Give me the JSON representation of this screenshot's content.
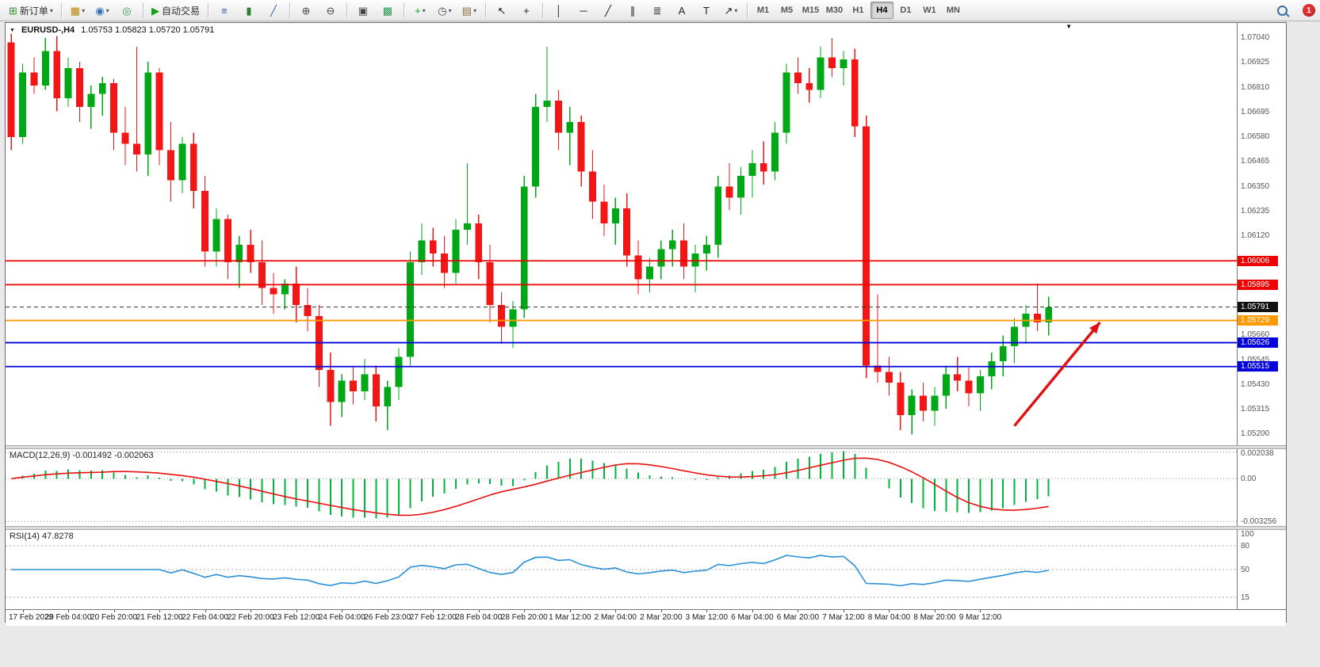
{
  "toolbar": {
    "badge_count": "1",
    "caret_glyph": "▾",
    "timeframes": [
      "M1",
      "M5",
      "M15",
      "M30",
      "H1",
      "H4",
      "D1",
      "W1",
      "MN"
    ],
    "active_timeframe": "H4",
    "items": [
      {
        "name": "new-order-button",
        "label": "新订单",
        "glyph": "⊞",
        "color": "#2f8f2f",
        "caret": true
      },
      {
        "type": "sep"
      },
      {
        "name": "new-chart-icon",
        "glyph": "▦",
        "color": "#b8860b",
        "caret": true
      },
      {
        "name": "profiles-icon",
        "glyph": "◉",
        "color": "#2f6fc1",
        "caret": true
      },
      {
        "name": "market-watch-icon",
        "glyph": "◎",
        "color": "#2e9b57"
      },
      {
        "type": "sep"
      },
      {
        "name": "autotrading-button",
        "label": "自动交易",
        "glyph": "▶",
        "color": "#12a012"
      },
      {
        "type": "sep"
      },
      {
        "name": "bars-chart-icon",
        "glyph": "≡",
        "color": "#3a5f9e"
      },
      {
        "name": "candlestick-chart-icon",
        "glyph": "▮",
        "color": "#2e7d32"
      },
      {
        "name": "line-chart-icon",
        "glyph": "╱",
        "color": "#3a5f9e"
      },
      {
        "type": "sep"
      },
      {
        "name": "zoom-in-icon",
        "glyph": "⊕",
        "color": "#444444"
      },
      {
        "name": "zoom-out-icon",
        "glyph": "⊖",
        "color": "#444444"
      },
      {
        "type": "sep"
      },
      {
        "name": "tile-windows-icon",
        "glyph": "▣",
        "color": "#444444"
      },
      {
        "name": "cascade-windows-icon",
        "glyph": "▩",
        "color": "#2e9b57"
      },
      {
        "type": "sep"
      },
      {
        "name": "indicators-icon",
        "glyph": "+",
        "color": "#12a012",
        "caret": true
      },
      {
        "name": "periods-icon",
        "glyph": "◷",
        "color": "#444444",
        "caret": true
      },
      {
        "name": "templates-icon",
        "glyph": "▤",
        "color": "#8a6d3b",
        "caret": true
      },
      {
        "type": "sep"
      },
      {
        "name": "cursor-icon",
        "glyph": "↖",
        "color": "#222222"
      },
      {
        "name": "crosshair-icon",
        "glyph": "+",
        "color": "#222222"
      },
      {
        "type": "sep"
      },
      {
        "name": "vertical-line-icon",
        "glyph": "│",
        "color": "#222222"
      },
      {
        "name": "horizontal-line-icon",
        "glyph": "─",
        "color": "#222222"
      },
      {
        "name": "trendline-icon",
        "glyph": "╱",
        "color": "#222222"
      },
      {
        "name": "channel-icon",
        "glyph": "∥",
        "color": "#222222"
      },
      {
        "name": "fibonacci-icon",
        "glyph": "≣",
        "color": "#222222"
      },
      {
        "name": "text-icon",
        "glyph": "A",
        "color": "#222222"
      },
      {
        "name": "label-icon",
        "glyph": "T",
        "color": "#222222"
      },
      {
        "name": "arrows-icon",
        "glyph": "↗",
        "color": "#222222",
        "caret": true
      },
      {
        "type": "sep"
      },
      {
        "type": "tf"
      },
      {
        "type": "spacer"
      },
      {
        "type": "search",
        "name": "search-icon"
      },
      {
        "type": "badge",
        "name": "notification-badge"
      }
    ]
  },
  "chart_header": {
    "symbol_title": "EURUSD-,H4",
    "ohlc_text": "1.05753 1.05823 1.05720 1.05791",
    "collapse_glyph": "▼",
    "shift_glyph": "▼"
  },
  "price_axis": {
    "gridline_labels": [
      "1.07040",
      "1.06925",
      "1.06810",
      "1.06695",
      "1.06580",
      "1.06465",
      "1.06350",
      "1.06235",
      "1.06120",
      "1.05660",
      "1.05545",
      "1.05430",
      "1.05315",
      "1.05200"
    ],
    "badges": [
      {
        "text": "1.06006",
        "bg": "#ee0000"
      },
      {
        "text": "1.05895",
        "bg": "#ee0000"
      },
      {
        "text": "1.05791",
        "bg": "#111111"
      },
      {
        "text": "1.05729",
        "bg": "#ff9900"
      },
      {
        "text": "1.05626",
        "bg": "#0000dd"
      },
      {
        "text": "1.05515",
        "bg": "#0000dd"
      }
    ]
  },
  "time_axis": {
    "labels": [
      "17 Feb 2023",
      "20 Feb 04:00",
      "20 Feb 20:00",
      "21 Feb 12:00",
      "22 Feb 04:00",
      "22 Feb 20:00",
      "23 Feb 12:00",
      "24 Feb 04:00",
      "26 Feb 23:00",
      "27 Feb 12:00",
      "28 Feb 04:00",
      "28 Feb 20:00",
      "1 Mar 12:00",
      "2 Mar 04:00",
      "2 Mar 20:00",
      "3 Mar 12:00",
      "6 Mar 04:00",
      "6 Mar 20:00",
      "7 Mar 12:00",
      "8 Mar 04:00",
      "8 Mar 20:00",
      "9 Mar 12:00"
    ]
  },
  "macd_panel": {
    "label": "MACD(12,26,9) -0.001492 -0.002063",
    "axis_labels": [
      "0.002038",
      "0.00",
      "-0.003256"
    ],
    "histogram_color": "#00b43c",
    "signal_color": "#e81010",
    "scale_max": 0.00225,
    "scale_min": -0.0036
  },
  "rsi_panel": {
    "label": "RSI(14) 47.8278",
    "axis_labels": [
      "100",
      "80",
      "50",
      "15"
    ],
    "levels": [
      80,
      50,
      15
    ],
    "line_color": "#2b8fd6"
  },
  "chart_data": {
    "type": "candlestick",
    "symbol": "EURUSD-",
    "period": "H4",
    "slots": 108,
    "price_min": 1.0515,
    "price_max": 1.0711,
    "up_color": "#00a816",
    "down_color": "#f31616",
    "hlines": [
      {
        "price": 1.06006,
        "color": "#ee0000",
        "width": 1.8
      },
      {
        "price": 1.05895,
        "color": "#ee0000",
        "width": 1.8
      },
      {
        "price": 1.05791,
        "color": "#333333",
        "width": 1,
        "dash": true
      },
      {
        "price": 1.05729,
        "color": "#ff9900",
        "width": 1.8
      },
      {
        "price": 1.05626,
        "color": "#0000dd",
        "width": 1.8
      },
      {
        "price": 1.05515,
        "color": "#0000dd",
        "width": 1.8
      }
    ],
    "arrow": {
      "x1_slot": 88.5,
      "p1": 1.0524,
      "x2_slot": 96,
      "p2": 1.0572,
      "color": "#e01010"
    },
    "candles": [
      [
        1.0702,
        1.0706,
        1.0652,
        1.0658
      ],
      [
        1.0658,
        1.0692,
        1.0655,
        1.0688
      ],
      [
        1.0688,
        1.0695,
        1.0678,
        1.0682
      ],
      [
        1.0682,
        1.0704,
        1.068,
        1.0698
      ],
      [
        1.0698,
        1.0705,
        1.067,
        1.0676
      ],
      [
        1.0676,
        1.0695,
        1.0672,
        1.069
      ],
      [
        1.069,
        1.0693,
        1.0665,
        1.0672
      ],
      [
        1.0672,
        1.0682,
        1.0662,
        1.0678
      ],
      [
        1.0678,
        1.0686,
        1.0668,
        1.0683
      ],
      [
        1.0683,
        1.0685,
        1.0652,
        1.066
      ],
      [
        1.066,
        1.0672,
        1.0645,
        1.0655
      ],
      [
        1.0655,
        1.07,
        1.0642,
        1.065
      ],
      [
        1.065,
        1.0693,
        1.064,
        1.0688
      ],
      [
        1.0688,
        1.069,
        1.0645,
        1.0652
      ],
      [
        1.0652,
        1.0665,
        1.0628,
        1.0638
      ],
      [
        1.0638,
        1.0658,
        1.0632,
        1.0655
      ],
      [
        1.0655,
        1.066,
        1.0625,
        1.0633
      ],
      [
        1.0633,
        1.064,
        1.0598,
        1.0605
      ],
      [
        1.0605,
        1.0625,
        1.0598,
        1.062
      ],
      [
        1.062,
        1.0622,
        1.0592,
        1.06
      ],
      [
        1.06,
        1.0612,
        1.0588,
        1.0608
      ],
      [
        1.0608,
        1.0615,
        1.0595,
        1.06
      ],
      [
        1.06,
        1.061,
        1.058,
        1.0588
      ],
      [
        1.0588,
        1.0595,
        1.0576,
        1.0585
      ],
      [
        1.0585,
        1.0592,
        1.0578,
        1.059
      ],
      [
        1.059,
        1.0598,
        1.0572,
        1.058
      ],
      [
        1.058,
        1.0588,
        1.0568,
        1.0575
      ],
      [
        1.0575,
        1.058,
        1.0542,
        1.055
      ],
      [
        1.055,
        1.0558,
        1.0524,
        1.0535
      ],
      [
        1.0535,
        1.0548,
        1.0528,
        1.0545
      ],
      [
        1.0545,
        1.0552,
        1.0534,
        1.054
      ],
      [
        1.054,
        1.0555,
        1.0536,
        1.0548
      ],
      [
        1.0548,
        1.0552,
        1.0526,
        1.0533
      ],
      [
        1.0533,
        1.0545,
        1.0522,
        1.0542
      ],
      [
        1.0542,
        1.056,
        1.0536,
        1.0556
      ],
      [
        1.0556,
        1.0605,
        1.0552,
        1.06
      ],
      [
        1.06,
        1.0618,
        1.0594,
        1.061
      ],
      [
        1.061,
        1.0616,
        1.0598,
        1.0604
      ],
      [
        1.0604,
        1.0612,
        1.0588,
        1.0595
      ],
      [
        1.0595,
        1.062,
        1.059,
        1.0615
      ],
      [
        1.0615,
        1.0646,
        1.0608,
        1.0618
      ],
      [
        1.0618,
        1.0622,
        1.0592,
        1.06
      ],
      [
        1.06,
        1.0608,
        1.0572,
        1.058
      ],
      [
        1.058,
        1.0586,
        1.0562,
        1.057
      ],
      [
        1.057,
        1.0582,
        1.056,
        1.0578
      ],
      [
        1.0578,
        1.064,
        1.0574,
        1.0635
      ],
      [
        1.0635,
        1.0678,
        1.063,
        1.0672
      ],
      [
        1.0672,
        1.07,
        1.0665,
        1.0675
      ],
      [
        1.0675,
        1.068,
        1.0652,
        1.066
      ],
      [
        1.066,
        1.0672,
        1.0645,
        1.0665
      ],
      [
        1.0665,
        1.0668,
        1.0635,
        1.0642
      ],
      [
        1.0642,
        1.0652,
        1.062,
        1.0628
      ],
      [
        1.0628,
        1.0636,
        1.0612,
        1.0618
      ],
      [
        1.0618,
        1.063,
        1.0608,
        1.0625
      ],
      [
        1.0625,
        1.0632,
        1.0598,
        1.0603
      ],
      [
        1.0603,
        1.061,
        1.0585,
        1.0592
      ],
      [
        1.0592,
        1.0602,
        1.0586,
        1.0598
      ],
      [
        1.0598,
        1.061,
        1.0592,
        1.0606
      ],
      [
        1.0606,
        1.0615,
        1.0598,
        1.061
      ],
      [
        1.061,
        1.0618,
        1.0592,
        1.0598
      ],
      [
        1.0598,
        1.0608,
        1.0586,
        1.0604
      ],
      [
        1.0604,
        1.0612,
        1.0596,
        1.0608
      ],
      [
        1.0608,
        1.064,
        1.0602,
        1.0635
      ],
      [
        1.0635,
        1.0646,
        1.0624,
        1.063
      ],
      [
        1.063,
        1.0644,
        1.0622,
        1.064
      ],
      [
        1.064,
        1.0652,
        1.063,
        1.0646
      ],
      [
        1.0646,
        1.0656,
        1.0636,
        1.0642
      ],
      [
        1.0642,
        1.0665,
        1.0638,
        1.066
      ],
      [
        1.066,
        1.0692,
        1.0655,
        1.0688
      ],
      [
        1.0688,
        1.0695,
        1.0678,
        1.0683
      ],
      [
        1.0683,
        1.069,
        1.0674,
        1.068
      ],
      [
        1.068,
        1.07,
        1.0676,
        1.0695
      ],
      [
        1.0695,
        1.0704,
        1.0686,
        1.069
      ],
      [
        1.069,
        1.0698,
        1.0682,
        1.0694
      ],
      [
        1.0694,
        1.0699,
        1.0658,
        1.0663
      ],
      [
        1.0663,
        1.0668,
        1.0546,
        1.0552
      ],
      [
        1.0552,
        1.0585,
        1.0544,
        1.0549
      ],
      [
        1.0549,
        1.0556,
        1.0538,
        1.0544
      ],
      [
        1.0544,
        1.0549,
        1.0522,
        1.0529
      ],
      [
        1.0529,
        1.0541,
        1.052,
        1.0538
      ],
      [
        1.0538,
        1.0544,
        1.0526,
        1.0531
      ],
      [
        1.0531,
        1.0542,
        1.0524,
        1.0538
      ],
      [
        1.0538,
        1.0552,
        1.0532,
        1.0548
      ],
      [
        1.0548,
        1.0556,
        1.054,
        1.0545
      ],
      [
        1.0545,
        1.0551,
        1.0533,
        1.0539
      ],
      [
        1.0539,
        1.055,
        1.0531,
        1.0547
      ],
      [
        1.0547,
        1.0558,
        1.0541,
        1.0554
      ],
      [
        1.0554,
        1.0566,
        1.0547,
        1.0561
      ],
      [
        1.0561,
        1.0574,
        1.0553,
        1.057
      ],
      [
        1.057,
        1.058,
        1.0562,
        1.0576
      ],
      [
        1.0576,
        1.059,
        1.0568,
        1.0572
      ],
      [
        1.0572,
        1.0584,
        1.0566,
        1.0579
      ]
    ],
    "indicators": {
      "macd": {
        "params": "12,26,9",
        "value": "-0.001492",
        "signal": "-0.002063"
      },
      "rsi": {
        "params": "14",
        "value": "47.8278"
      }
    }
  }
}
